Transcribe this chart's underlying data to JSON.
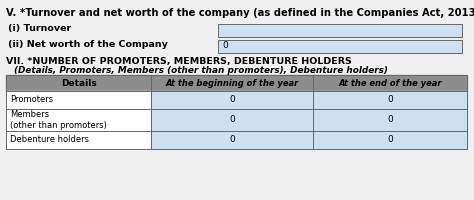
{
  "title_v": "V. *Turnover and net worth of the company (as defined in the Companies Act, 2013)",
  "title_vii_bold": "VII. *NUMBER OF PROMOTERS, MEMBERS, DEBENTURE HOLDERS",
  "title_vii_italic": "(Details, Promoters, Members (other than promoters), Debenture holders)",
  "label_i": "(i) Turnover",
  "label_ii": "(ii) Net worth of the Company",
  "value_ii": "0",
  "col_header1": "Details",
  "col_header2": "At the beginning of the year",
  "col_header3": "At the end of the year",
  "rows": [
    {
      "label": "Promoters",
      "val1": "0",
      "val2": "0"
    },
    {
      "label": "Members\n(other than promoters)",
      "val1": "0",
      "val2": "0"
    },
    {
      "label": "Debenture holders",
      "val1": "0",
      "val2": "0"
    }
  ],
  "header_bg": "#8c8c8c",
  "row_col2_bg": "#d0dff0",
  "input_box_bg": "#d0dff0",
  "border_color": "#666666",
  "bg_color": "#f0f0f0"
}
